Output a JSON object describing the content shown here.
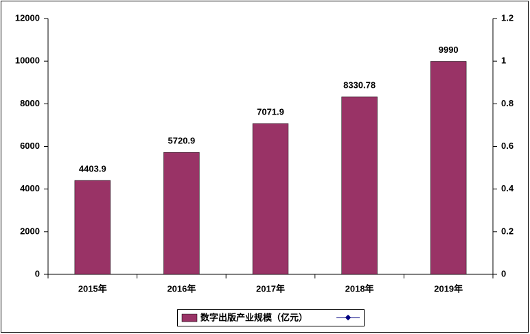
{
  "chart_data": {
    "type": "bar",
    "categories": [
      "2015年",
      "2016年",
      "2017年",
      "2018年",
      "2019年"
    ],
    "series": [
      {
        "name": "数字出版产业规模（亿元）",
        "color": "#993366",
        "values": [
          4403.9,
          5720.9,
          7071.9,
          8330.78,
          9990
        ]
      }
    ],
    "ylim": [
      0,
      12000
    ],
    "yticks": [
      0,
      2000,
      4000,
      6000,
      8000,
      10000,
      12000
    ],
    "y2lim": [
      0,
      1.2
    ],
    "y2ticks": [
      0,
      0.2,
      0.4,
      0.6,
      0.8,
      1,
      1.2
    ],
    "grid": false,
    "legend": "bottom"
  }
}
